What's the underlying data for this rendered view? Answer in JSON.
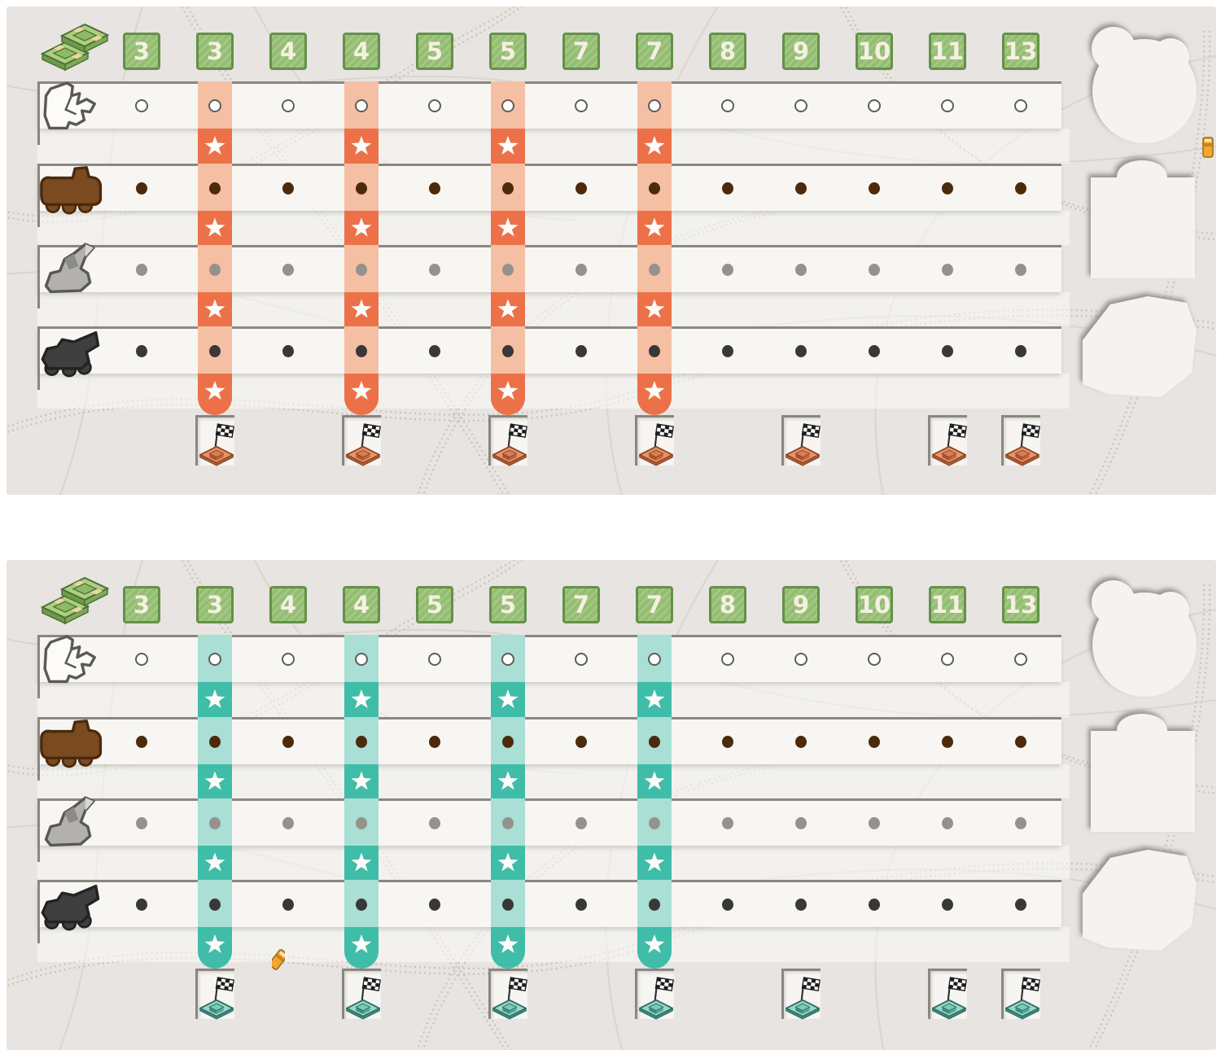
{
  "title": "delivery-game-player-boards",
  "shared": {
    "money_icon": "money-stack-icon",
    "columns": [
      "3",
      "3",
      "4",
      "4",
      "5",
      "5",
      "7",
      "7",
      "8",
      "9",
      "10",
      "11",
      "13"
    ],
    "price_tile": {
      "fill": "#93BD70",
      "border": "#649149",
      "text_color": "#F4F0E2"
    },
    "star_columns": [
      2,
      4,
      6,
      8
    ],
    "flag_columns": [
      2,
      4,
      6,
      8,
      10,
      12,
      13
    ],
    "star_icon": "star-icon",
    "flag_icon": "checkered-flag-station-icon",
    "rows": [
      {
        "icon": "bulldozer-outline-icon",
        "dot_style": "open",
        "dot_color": "#FDFDFB",
        "dot_border": "#5F5D5A"
      },
      {
        "icon": "brown-truck-icon",
        "dot_style": "solid",
        "dot_color": "#4C2A0C"
      },
      {
        "icon": "excavator-icon",
        "dot_style": "solid",
        "dot_color": "#95928D"
      },
      {
        "icon": "dump-truck-icon",
        "dot_style": "solid",
        "dot_color": "#393837"
      }
    ],
    "board_bg": "#E7E4E1",
    "strip_color": "#F8F6F3",
    "strip_border": "#8A8781",
    "track_dotted_color": "#CBC4BA",
    "track_line_color": "#DAD5CE",
    "yellow_truck_icon": "yellow-truck-icon"
  },
  "boards": [
    {
      "id": "orange-player-board",
      "accent": "#ED7148",
      "accent_light": "#F5BFA4",
      "station": {
        "base": "#E9946C",
        "baseDark": "#BC6A44",
        "stroke": "#8F4A26",
        "raisedTop": "#D97E54",
        "raisedL": "#A9532F",
        "raisedR": "#C2633C"
      }
    },
    {
      "id": "teal-player-board",
      "accent": "#3FBDA8",
      "accent_light": "#A9DFD5",
      "station": {
        "base": "#9AD6CB",
        "baseDark": "#4E9D8F",
        "stroke": "#2F7065",
        "raisedTop": "#7CC9BB",
        "raisedL": "#3E8D80",
        "raisedR": "#55A797"
      }
    }
  ],
  "money": {
    "bill_top": "#ACCF80",
    "bill_side": "#6E9A4C",
    "band": "#ECD6A0",
    "outline": "#4E7034"
  }
}
